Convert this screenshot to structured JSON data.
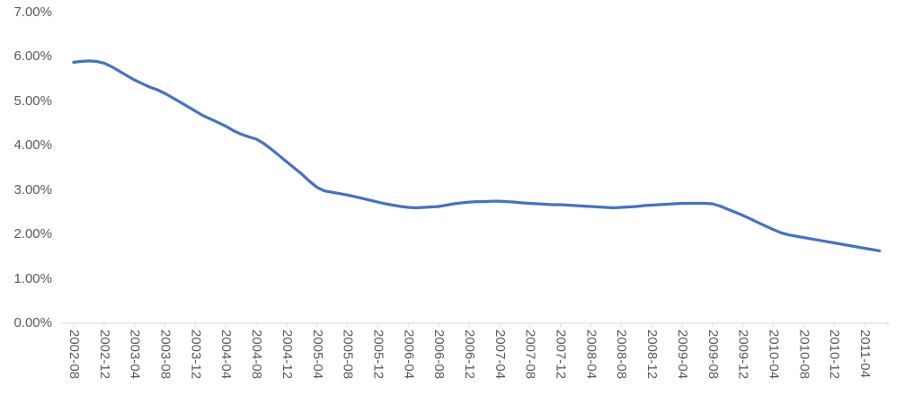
{
  "chart_data": {
    "type": "line",
    "title": "",
    "xlabel": "",
    "ylabel": "",
    "legend": "none",
    "grid": false,
    "ylim": [
      0,
      7
    ],
    "y_ticks": [
      "0.00%",
      "1.00%",
      "2.00%",
      "3.00%",
      "4.00%",
      "5.00%",
      "6.00%",
      "7.00%"
    ],
    "x_tick_every": 4,
    "x_tick_labels": [
      "2002-08",
      "2002-12",
      "2003-04",
      "2003-08",
      "2003-12",
      "2004-04",
      "2004-08",
      "2004-12",
      "2005-04",
      "2005-08",
      "2005-12",
      "2006-04",
      "2006-08",
      "2006-12",
      "2007-04",
      "2007-08",
      "2007-12",
      "2008-04",
      "2008-08",
      "2008-12",
      "2009-04",
      "2009-08",
      "2009-12",
      "2010-04",
      "2010-08",
      "2010-12",
      "2011-04"
    ],
    "x": [
      "2002-08",
      "2002-09",
      "2002-10",
      "2002-11",
      "2002-12",
      "2003-01",
      "2003-02",
      "2003-03",
      "2003-04",
      "2003-05",
      "2003-06",
      "2003-07",
      "2003-08",
      "2003-09",
      "2003-10",
      "2003-11",
      "2003-12",
      "2004-01",
      "2004-02",
      "2004-03",
      "2004-04",
      "2004-05",
      "2004-06",
      "2004-07",
      "2004-08",
      "2004-09",
      "2004-10",
      "2004-11",
      "2004-12",
      "2005-01",
      "2005-02",
      "2005-03",
      "2005-04",
      "2005-05",
      "2005-06",
      "2005-07",
      "2005-08",
      "2005-09",
      "2005-10",
      "2005-11",
      "2005-12",
      "2006-01",
      "2006-02",
      "2006-03",
      "2006-04",
      "2006-05",
      "2006-06",
      "2006-07",
      "2006-08",
      "2006-09",
      "2006-10",
      "2006-11",
      "2006-12",
      "2007-01",
      "2007-02",
      "2007-03",
      "2007-04",
      "2007-05",
      "2007-06",
      "2007-07",
      "2007-08",
      "2007-09",
      "2007-10",
      "2007-11",
      "2007-12",
      "2008-01",
      "2008-02",
      "2008-03",
      "2008-04",
      "2008-05",
      "2008-06",
      "2008-07",
      "2008-08",
      "2008-09",
      "2008-10",
      "2008-11",
      "2008-12",
      "2009-01",
      "2009-02",
      "2009-03",
      "2009-04",
      "2009-05",
      "2009-06",
      "2009-07",
      "2009-08",
      "2009-09",
      "2009-10",
      "2009-11",
      "2009-12",
      "2010-01",
      "2010-02",
      "2010-03",
      "2010-04",
      "2010-05",
      "2010-06",
      "2010-07",
      "2010-08",
      "2010-09",
      "2010-10",
      "2010-11",
      "2010-12",
      "2011-01",
      "2011-02",
      "2011-03",
      "2011-04",
      "2011-05",
      "2011-06"
    ],
    "values": [
      5.88,
      5.9,
      5.91,
      5.9,
      5.86,
      5.78,
      5.68,
      5.58,
      5.48,
      5.4,
      5.32,
      5.26,
      5.18,
      5.08,
      4.98,
      4.88,
      4.78,
      4.68,
      4.6,
      4.52,
      4.44,
      4.34,
      4.26,
      4.2,
      4.15,
      4.05,
      3.92,
      3.78,
      3.64,
      3.5,
      3.36,
      3.2,
      3.06,
      2.98,
      2.95,
      2.92,
      2.89,
      2.85,
      2.81,
      2.77,
      2.73,
      2.69,
      2.66,
      2.63,
      2.61,
      2.6,
      2.61,
      2.62,
      2.63,
      2.66,
      2.69,
      2.71,
      2.73,
      2.74,
      2.74,
      2.75,
      2.75,
      2.74,
      2.73,
      2.71,
      2.7,
      2.69,
      2.68,
      2.67,
      2.67,
      2.66,
      2.65,
      2.64,
      2.63,
      2.62,
      2.61,
      2.6,
      2.61,
      2.62,
      2.63,
      2.65,
      2.66,
      2.67,
      2.68,
      2.69,
      2.7,
      2.7,
      2.7,
      2.7,
      2.69,
      2.64,
      2.57,
      2.5,
      2.43,
      2.35,
      2.27,
      2.19,
      2.11,
      2.04,
      1.99,
      1.96,
      1.93,
      1.9,
      1.87,
      1.84,
      1.81,
      1.78,
      1.75,
      1.72,
      1.69,
      1.66,
      1.63
    ],
    "line_color": "#4472c4",
    "axis_color": "#d9d9d9",
    "label_color": "#595959"
  }
}
